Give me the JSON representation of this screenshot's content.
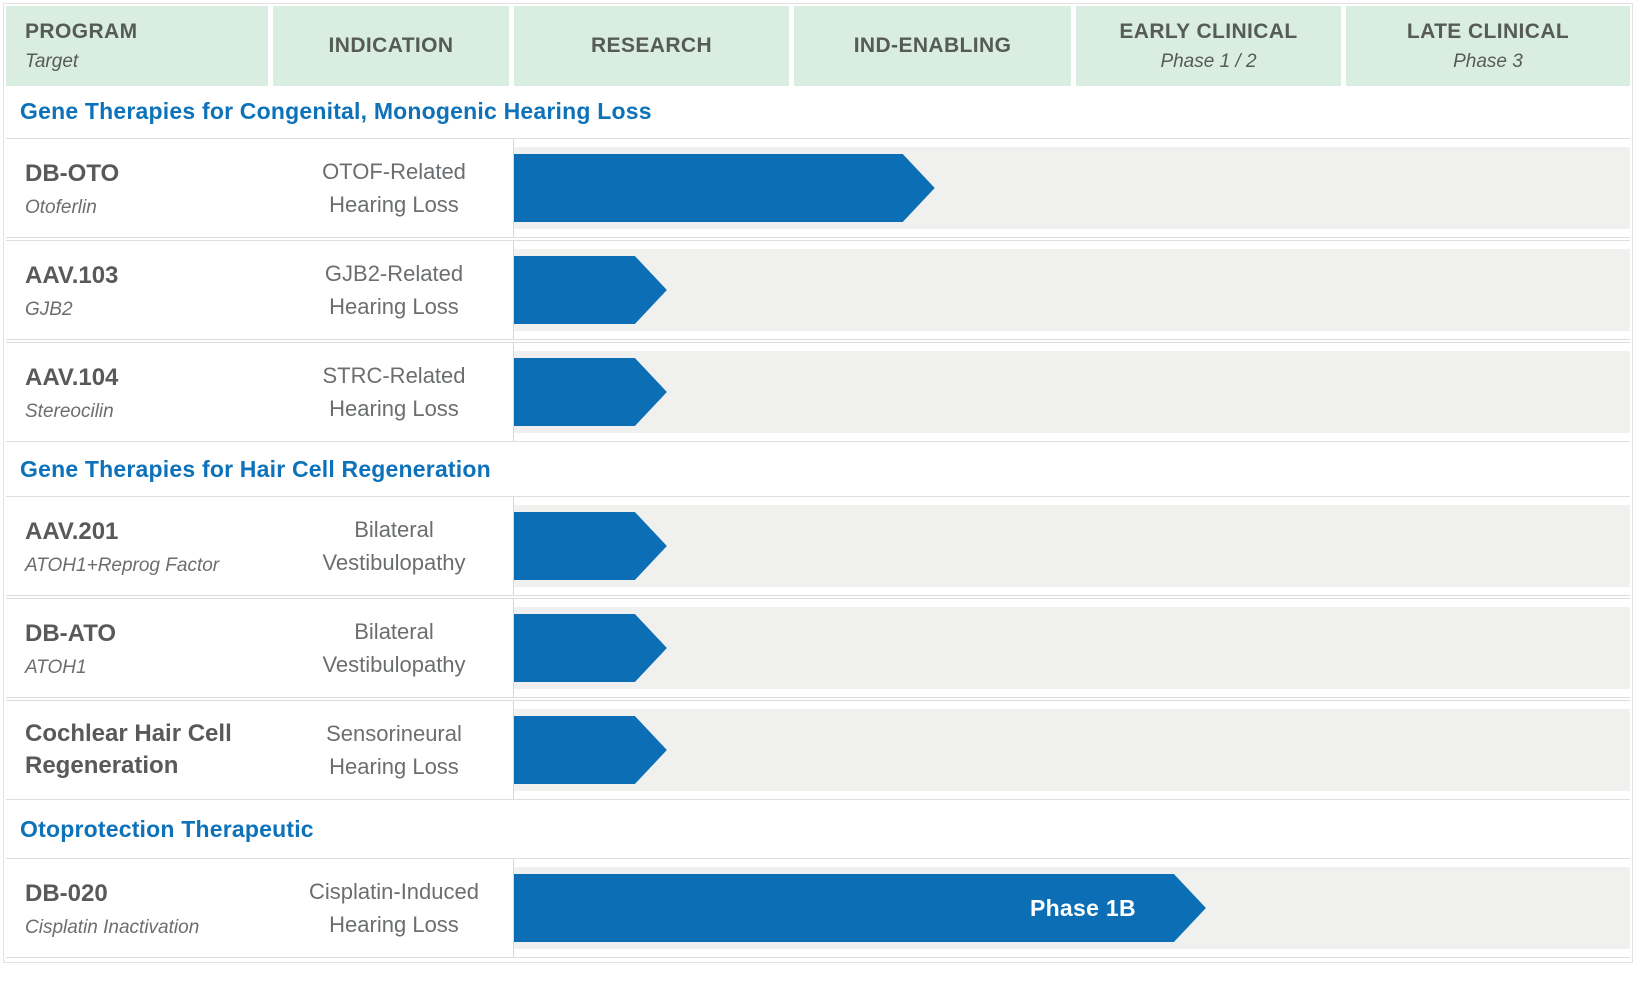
{
  "colors": {
    "header_bg": "#d9eee1",
    "header_text": "#565b57",
    "arrow_blue": "#0c6fb6",
    "section_title_blue": "#0d72b9",
    "program_text": "#58595b",
    "secondary_text": "#6b6e70",
    "track_bg": "#f0f0ee",
    "row_border": "#dedede",
    "bar_label_text": "#ffffff"
  },
  "header": {
    "columns": [
      {
        "label": "PROGRAM",
        "sublabel": "Target"
      },
      {
        "label": "INDICATION"
      },
      {
        "label": "RESEARCH"
      },
      {
        "label": "IND-ENABLING"
      },
      {
        "label": "EARLY CLINICAL",
        "sublabel": "Phase 1 / 2"
      },
      {
        "label": "LATE CLINICAL",
        "sublabel": "Phase 3"
      }
    ]
  },
  "sections": [
    {
      "title": "Gene Therapies for Congenital, Monogenic Hearing Loss",
      "programs": [
        {
          "name": "DB-OTO",
          "target": "Otoferlin",
          "indication_line1": "OTOF-Related",
          "indication_line2": "Hearing Loss",
          "bar_pct": 37.7,
          "bar_label": ""
        },
        {
          "name": "AAV.103",
          "target": "GJB2",
          "indication_line1": "GJB2-Related",
          "indication_line2": "Hearing Loss",
          "bar_pct": 13.7,
          "bar_label": ""
        },
        {
          "name": "AAV.104",
          "target": "Stereocilin",
          "indication_line1": "STRC-Related",
          "indication_line2": "Hearing Loss",
          "bar_pct": 13.7,
          "bar_label": ""
        }
      ]
    },
    {
      "title": "Gene Therapies for Hair Cell Regeneration",
      "programs": [
        {
          "name": "AAV.201",
          "target": "ATOH1+Reprog Factor",
          "indication_line1": "Bilateral",
          "indication_line2": "Vestibulopathy",
          "bar_pct": 13.7,
          "bar_label": ""
        },
        {
          "name": "DB-ATO",
          "target": "ATOH1",
          "indication_line1": "Bilateral",
          "indication_line2": "Vestibulopathy",
          "bar_pct": 13.7,
          "bar_label": ""
        },
        {
          "name": "Cochlear Hair Cell Regeneration",
          "target": "",
          "indication_line1": "Sensorineural",
          "indication_line2": "Hearing Loss",
          "bar_pct": 13.7,
          "bar_label": ""
        }
      ]
    },
    {
      "title": "Otoprotection Therapeutic",
      "programs": [
        {
          "name": "DB-020",
          "target": "Cisplatin Inactivation",
          "indication_line1": "Cisplatin-Induced",
          "indication_line2": "Hearing Loss",
          "bar_pct": 62,
          "bar_label": "Phase 1B"
        }
      ]
    }
  ],
  "chart_data": {
    "type": "table",
    "title": "Therapeutics pipeline by development stage",
    "stage_columns": [
      "RESEARCH",
      "IND-ENABLING",
      "EARLY CLINICAL Phase 1/2",
      "LATE CLINICAL Phase 3"
    ],
    "legend_position": "none",
    "rows": [
      {
        "section": "Gene Therapies for Congenital, Monogenic Hearing Loss",
        "program": "DB-OTO",
        "target": "Otoferlin",
        "indication": "OTOF-Related Hearing Loss",
        "stage_reached": "IND-ENABLING (mid)",
        "progress_pct_of_stage_lane": 38,
        "bar_label": ""
      },
      {
        "section": "Gene Therapies for Congenital, Monogenic Hearing Loss",
        "program": "AAV.103",
        "target": "GJB2",
        "indication": "GJB2-Related Hearing Loss",
        "stage_reached": "RESEARCH (mid)",
        "progress_pct_of_stage_lane": 14,
        "bar_label": ""
      },
      {
        "section": "Gene Therapies for Congenital, Monogenic Hearing Loss",
        "program": "AAV.104",
        "target": "Stereocilin",
        "indication": "STRC-Related Hearing Loss",
        "stage_reached": "RESEARCH (mid)",
        "progress_pct_of_stage_lane": 14,
        "bar_label": ""
      },
      {
        "section": "Gene Therapies for Hair Cell Regeneration",
        "program": "AAV.201",
        "target": "ATOH1+Reprog Factor",
        "indication": "Bilateral Vestibulopathy",
        "stage_reached": "RESEARCH (mid)",
        "progress_pct_of_stage_lane": 14,
        "bar_label": ""
      },
      {
        "section": "Gene Therapies for Hair Cell Regeneration",
        "program": "DB-ATO",
        "target": "ATOH1",
        "indication": "Bilateral Vestibulopathy",
        "stage_reached": "RESEARCH (mid)",
        "progress_pct_of_stage_lane": 14,
        "bar_label": ""
      },
      {
        "section": "Gene Therapies for Hair Cell Regeneration",
        "program": "Cochlear Hair Cell Regeneration",
        "target": "",
        "indication": "Sensorineural Hearing Loss",
        "stage_reached": "RESEARCH (mid)",
        "progress_pct_of_stage_lane": 14,
        "bar_label": ""
      },
      {
        "section": "Otoprotection Therapeutic",
        "program": "DB-020",
        "target": "Cisplatin Inactivation",
        "indication": "Cisplatin-Induced Hearing Loss",
        "stage_reached": "EARLY CLINICAL (mid)",
        "progress_pct_of_stage_lane": 62,
        "bar_label": "Phase 1B"
      }
    ]
  }
}
